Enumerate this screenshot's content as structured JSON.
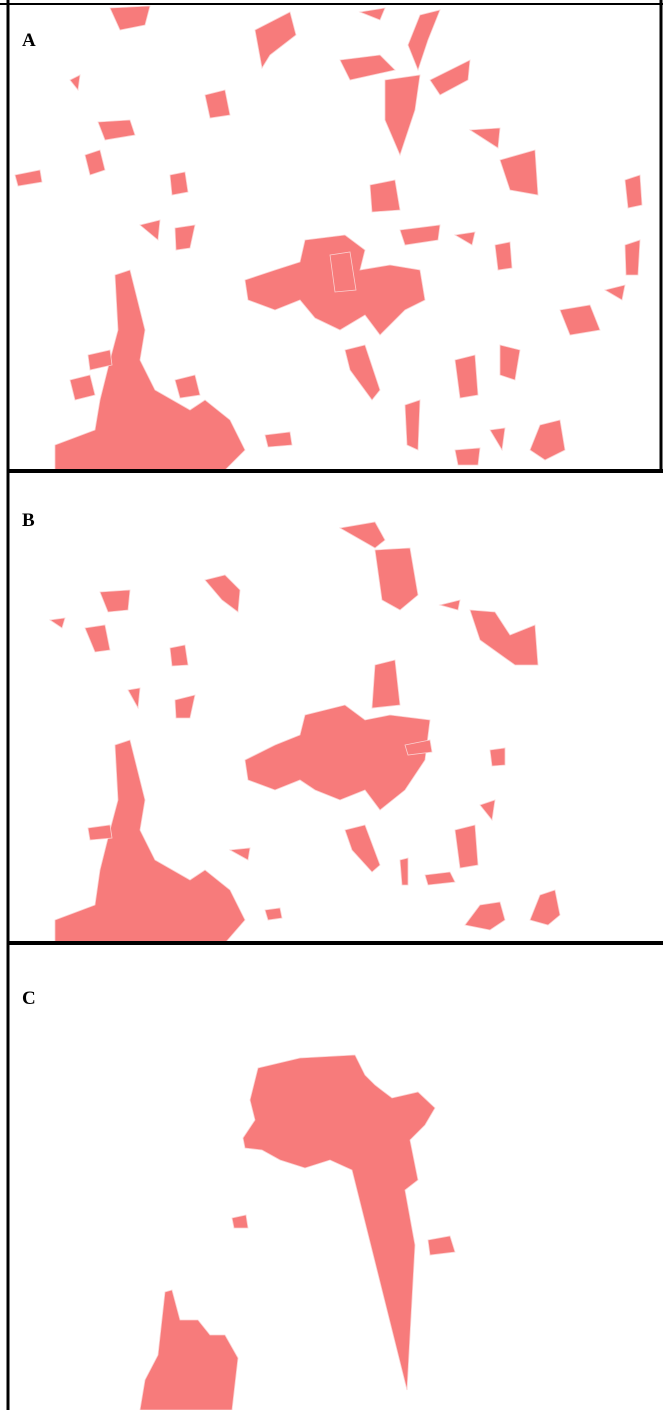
{
  "panels": [
    {
      "label": "A"
    },
    {
      "label": "B"
    },
    {
      "label": "C"
    }
  ]
}
